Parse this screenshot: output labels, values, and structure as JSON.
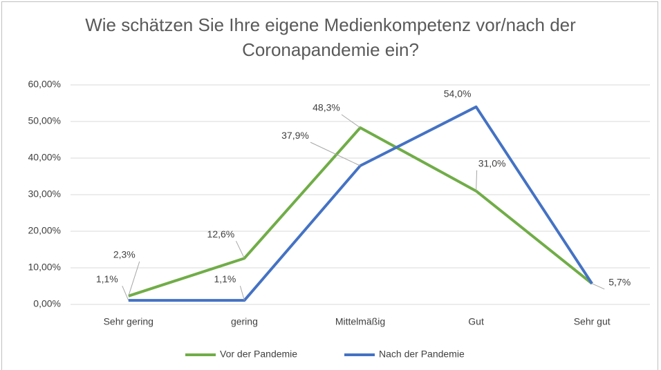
{
  "chart_data": {
    "type": "line",
    "title": "Wie schätzen Sie Ihre eigene Medienkompetenz vor/nach der Coronapandemie ein?",
    "categories": [
      "Sehr gering",
      "gering",
      "Mittelmäßig",
      "Gut",
      "Sehr gut"
    ],
    "series": [
      {
        "name": "Vor der Pandemie",
        "color": "#70ad47",
        "values": [
          2.3,
          12.6,
          48.3,
          31.0,
          5.7
        ],
        "value_labels": [
          "2,3%",
          "12,6%",
          "48,3%",
          "31,0%",
          null
        ]
      },
      {
        "name": "Nach der Pandemie",
        "color": "#4472c4",
        "values": [
          1.1,
          1.1,
          37.9,
          54.0,
          5.7
        ],
        "value_labels": [
          "1,1%",
          "1,1%",
          "37,9%",
          "54,0%",
          "5,7%"
        ]
      }
    ],
    "ylim": [
      0,
      60
    ],
    "yticks": [
      {
        "value": 0,
        "label": "0,00%"
      },
      {
        "value": 10,
        "label": "10,00%"
      },
      {
        "value": 20,
        "label": "20,00%"
      },
      {
        "value": 30,
        "label": "30,00%"
      },
      {
        "value": 40,
        "label": "40,00%"
      },
      {
        "value": 50,
        "label": "50,00%"
      },
      {
        "value": 60,
        "label": "60,00%"
      }
    ],
    "grid": true,
    "legend": "bottom"
  }
}
